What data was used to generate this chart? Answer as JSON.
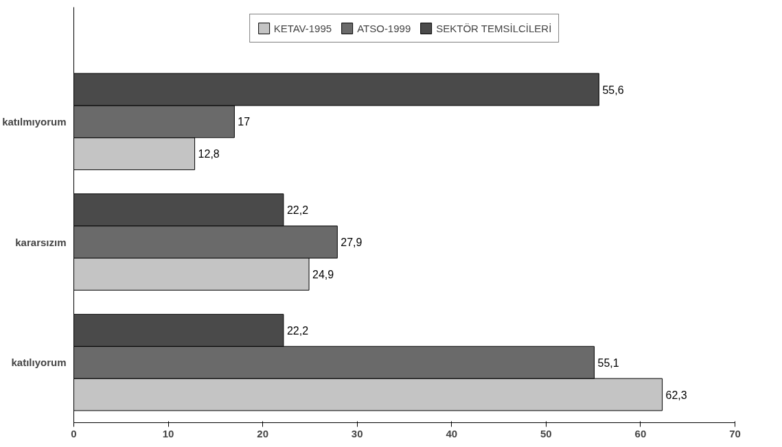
{
  "chart_data": {
    "type": "bar",
    "orientation": "horizontal",
    "categories": [
      "katılmıyorum",
      "kararsızım",
      "katılıyorum"
    ],
    "series": [
      {
        "name": "KETAV-1995",
        "color": "#c4c4c4",
        "values": [
          12.8,
          24.9,
          62.3
        ],
        "value_labels": [
          "12,8",
          "24,9",
          "62,3"
        ]
      },
      {
        "name": "ATSO-1999",
        "color": "#6a6a6a",
        "values": [
          17,
          27.9,
          55.1
        ],
        "value_labels": [
          "17",
          "27,9",
          "55,1"
        ]
      },
      {
        "name": "SEKTÖR TEMSİLCİLERİ",
        "color": "#4a4a4a",
        "values": [
          55.6,
          22.2,
          22.2
        ],
        "value_labels": [
          "55,6",
          "22,2",
          "22,2"
        ]
      }
    ],
    "xlim": [
      0,
      70
    ],
    "xticks": [
      0,
      10,
      20,
      30,
      40,
      50,
      60,
      70
    ],
    "grid": false,
    "legend": "top"
  }
}
